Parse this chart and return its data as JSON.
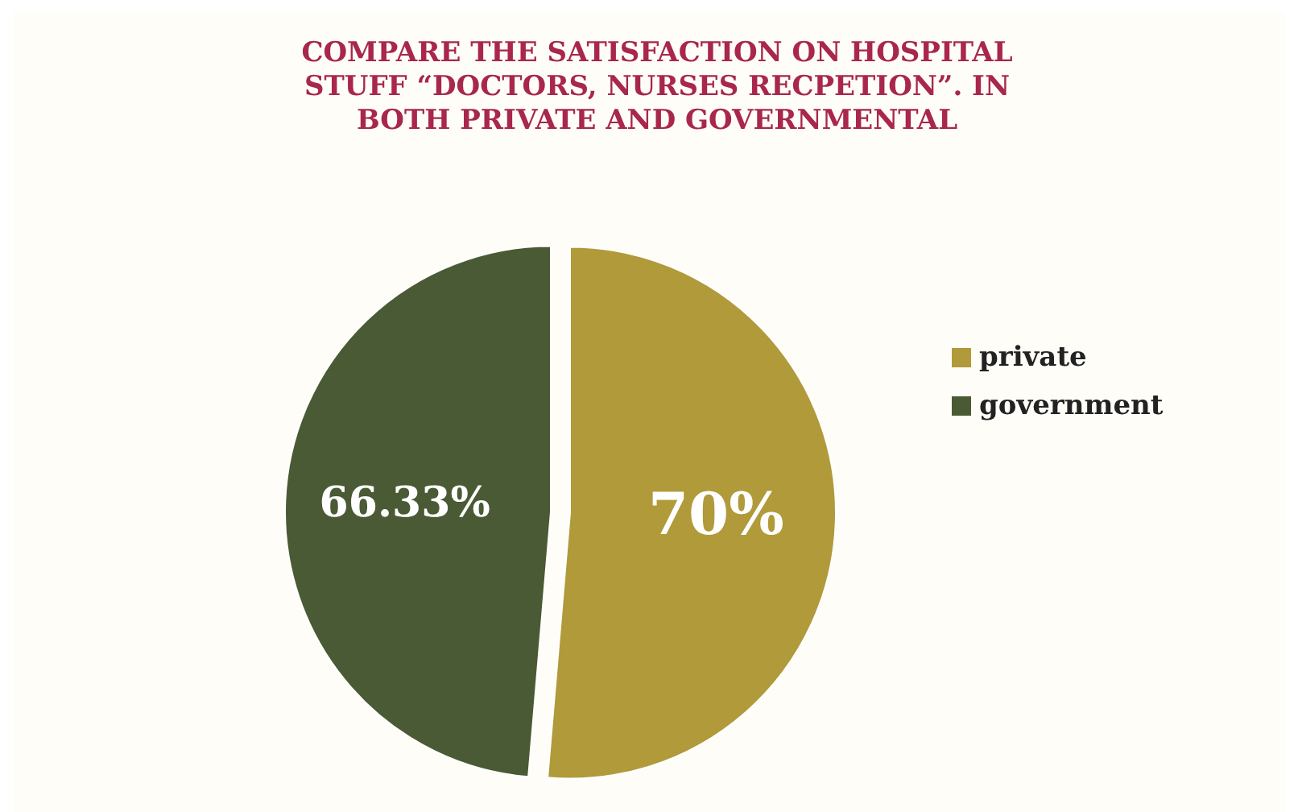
{
  "chart_data": {
    "type": "pie",
    "title": "COMPARE THE SATISFACTION ON HOSPITAL STUFF “DOCTORS, NURSES RECPETION”.  IN BOTH PRIVATE AND GOVERNMENTAL",
    "categories": [
      "private",
      "government"
    ],
    "values": [
      70,
      66.33
    ],
    "colors": [
      "#b09a3a",
      "#4a5a34"
    ],
    "value_labels": [
      "70%",
      "66.33%"
    ],
    "legend": "right"
  }
}
